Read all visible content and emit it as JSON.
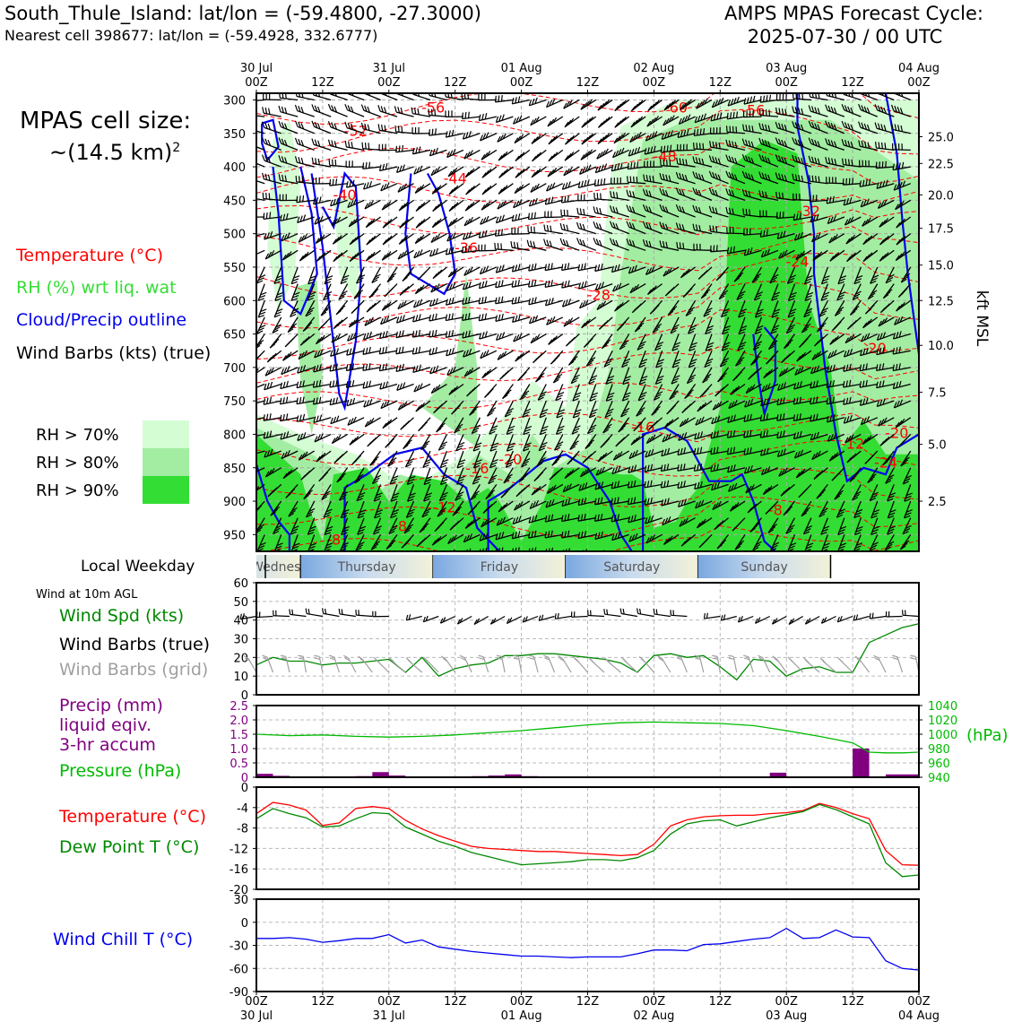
{
  "header": {
    "title": "South_Thule_Island: lat/lon = (-59.4800, -27.3000)",
    "subtitle": "Nearest cell 398677: lat/lon = (-59.4928, 332.6777)",
    "cycle_line1": "AMPS MPAS Forecast Cycle:",
    "cycle_line2": "2025-07-30 / 00 UTC"
  },
  "cell_size": {
    "line1": "MPAS cell size:",
    "line2": "~(14.5 km)",
    "sup": "2"
  },
  "legend": {
    "temperature": "Temperature (°C)",
    "rh": "RH (%) wrt liq. wat",
    "cloud": "Cloud/Precip outline",
    "wind": "Wind Barbs (kts) (true)",
    "rh70": "RH > 70%",
    "rh80": "RH > 80%",
    "rh90": "RH > 90%"
  },
  "colors": {
    "temperature": "#ff0000",
    "rh_text": "#33dd33",
    "cloud": "#0000ee",
    "rh70": "#d4fdd4",
    "rh80": "#a3eda3",
    "rh90": "#33dd33",
    "wind_speed": "#008800",
    "precip": "#800080",
    "pressure": "#00bb00",
    "dewpoint": "#008800",
    "wind_chill": "#0000ee",
    "grid_barb": "#a0a0a0",
    "weekday_blue": "#7aa8e0",
    "weekday_cream": "#f3f2d8"
  },
  "weekday_label": "Local Weekday",
  "wind10_label": "Wind at 10m AGL",
  "panel_labels": {
    "wind_spd": "Wind Spd (kts)",
    "wind_barbs_true": "Wind Barbs (true)",
    "wind_barbs_grid": "Wind Barbs (grid)",
    "precip_1": "Precip (mm)",
    "precip_2": "liquid eqiv.",
    "precip_3": "3-hr accum",
    "pressure": "Pressure (hPa)",
    "temperature": "Temperature (°C)",
    "dewpoint": "Dew Point T (°C)",
    "wind_chill": "Wind Chill T (°C)"
  },
  "chart_data": [
    {
      "type": "heatmap",
      "panel": "upper_air_timeheight",
      "x_top_ticks": [
        {
          "line1": "30 Jul",
          "line2": "00Z"
        },
        {
          "line1": "",
          "line2": "12Z"
        },
        {
          "line1": "31 Jul",
          "line2": "00Z"
        },
        {
          "line1": "",
          "line2": "12Z"
        },
        {
          "line1": "01 Aug",
          "line2": "00Z"
        },
        {
          "line1": "",
          "line2": "12Z"
        },
        {
          "line1": "02 Aug",
          "line2": "00Z"
        },
        {
          "line1": "",
          "line2": "12Z"
        },
        {
          "line1": "03 Aug",
          "line2": "00Z"
        },
        {
          "line1": "",
          "line2": "12Z"
        },
        {
          "line1": "04 Aug",
          "line2": "00Z"
        }
      ],
      "x_range_hours": [
        0,
        120
      ],
      "y_pressure_ticks": [
        300,
        350,
        400,
        450,
        500,
        550,
        600,
        650,
        700,
        750,
        800,
        850,
        900,
        950
      ],
      "y_range_hpa": [
        290,
        975
      ],
      "y_right_label": "kft MSL",
      "y_right_ticks": [
        {
          "kft": 25.0,
          "label": "25.0",
          "p": 355
        },
        {
          "kft": 22.5,
          "label": "22.5",
          "p": 395
        },
        {
          "kft": 20.0,
          "label": "20.0",
          "p": 442
        },
        {
          "kft": 17.5,
          "label": "17.5",
          "p": 492
        },
        {
          "kft": 15.0,
          "label": "15.0",
          "p": 547
        },
        {
          "kft": 12.5,
          "label": "12.5",
          "p": 600
        },
        {
          "kft": 10.0,
          "label": "10.0",
          "p": 667
        },
        {
          "kft": 7.5,
          "label": "7.5",
          "p": 737
        },
        {
          "kft": 5.0,
          "label": "5.0",
          "p": 815
        },
        {
          "kft": 2.5,
          "label": "2.5",
          "p": 900
        }
      ],
      "temperature_labels": [
        {
          "t": 16,
          "p": 312,
          "text": "-56"
        },
        {
          "t": 9,
          "p": 347,
          "text": "-52"
        },
        {
          "t": 37,
          "p": 385,
          "text": "-48"
        },
        {
          "t": 38,
          "p": 312,
          "text": "-60"
        },
        {
          "t": 45,
          "p": 316,
          "text": "-56"
        },
        {
          "t": 18,
          "p": 418,
          "text": "-44"
        },
        {
          "t": 8,
          "p": 443,
          "text": "-40"
        },
        {
          "t": 19,
          "p": 522,
          "text": "-36"
        },
        {
          "t": 31,
          "p": 592,
          "text": "-28"
        },
        {
          "t": 50,
          "p": 467,
          "text": "-32"
        },
        {
          "t": 49,
          "p": 543,
          "text": "-24"
        },
        {
          "t": 56,
          "p": 672,
          "text": "-20"
        },
        {
          "t": 35,
          "p": 790,
          "text": "-16"
        },
        {
          "t": 20,
          "p": 852,
          "text": "-16"
        },
        {
          "t": 23,
          "p": 838,
          "text": "-20"
        },
        {
          "t": 17,
          "p": 910,
          "text": "-12"
        },
        {
          "t": 13,
          "p": 938,
          "text": "-8"
        },
        {
          "t": 7,
          "p": 958,
          "text": "-8"
        },
        {
          "t": 54,
          "p": 815,
          "text": "-12"
        },
        {
          "t": 58,
          "p": 799,
          "text": "-20"
        },
        {
          "t": 47,
          "p": 914,
          "text": "-8"
        },
        {
          "t": 57,
          "p": 843,
          "text": "-24"
        }
      ],
      "series": [
        {
          "name": "RH > 70%"
        },
        {
          "name": "RH > 80%"
        },
        {
          "name": "RH > 90%"
        },
        {
          "name": "Cloud/Precip outline"
        },
        {
          "name": "Temperature (°C)"
        },
        {
          "name": "Wind Barbs (kts) (true)"
        }
      ]
    },
    {
      "type": "table",
      "panel": "local_weekday",
      "days": [
        {
          "label": "Wednesday",
          "start_h": -16,
          "end_h": 8
        },
        {
          "label": "Thursday",
          "start_h": 8,
          "end_h": 32
        },
        {
          "label": "Friday",
          "start_h": 32,
          "end_h": 56
        },
        {
          "label": "Saturday",
          "start_h": 56,
          "end_h": 80
        },
        {
          "label": "Sunday",
          "start_h": 80,
          "end_h": 104
        }
      ],
      "x_range_hours": [
        0,
        60
      ]
    },
    {
      "type": "line",
      "panel": "wind_10m",
      "series_name": "Wind Spd (kts)",
      "x_range_hours": [
        0,
        120
      ],
      "ylim": [
        0,
        60
      ],
      "yticks": [
        0,
        10,
        20,
        30,
        40,
        50,
        60
      ],
      "x": [
        0,
        3,
        6,
        9,
        12,
        15,
        18,
        21,
        24,
        27,
        30,
        33,
        36,
        39,
        42,
        45,
        48,
        51,
        54,
        57,
        60,
        63,
        66,
        69,
        72,
        75,
        78,
        81,
        84,
        87,
        90,
        93,
        96,
        99,
        102,
        105,
        108,
        111,
        114,
        117,
        120
      ],
      "values": [
        16,
        20,
        18,
        18,
        16,
        17,
        17,
        18,
        19,
        12,
        20,
        10,
        14,
        16,
        17,
        21,
        21,
        22,
        22,
        21,
        20,
        19,
        17,
        12,
        21,
        22,
        20,
        21,
        15,
        8,
        19,
        18,
        10,
        14,
        15,
        12,
        12,
        28,
        32,
        36,
        38
      ],
      "barb_rows": [
        {
          "name": "Wind Barbs (true)",
          "y_value": 42
        },
        {
          "name": "Wind Barbs (grid)",
          "y_value": 12
        }
      ]
    },
    {
      "type": "bar",
      "panel": "precip_pressure",
      "x_range_hours": [
        0,
        120
      ],
      "precip": {
        "name": "Precip (mm)",
        "ylim": [
          0,
          2.5
        ],
        "yticks": [
          "0",
          "0.5",
          "1.0",
          "1.5",
          "2.0",
          "2.5"
        ],
        "bars": [
          {
            "x": 1.5,
            "v": 0.12
          },
          {
            "x": 4.5,
            "v": 0.05
          },
          {
            "x": 19.5,
            "v": 0.04
          },
          {
            "x": 22.5,
            "v": 0.18
          },
          {
            "x": 25.5,
            "v": 0.06
          },
          {
            "x": 40.5,
            "v": 0.04
          },
          {
            "x": 43.5,
            "v": 0.06
          },
          {
            "x": 46.5,
            "v": 0.1
          },
          {
            "x": 49.5,
            "v": 0.04
          },
          {
            "x": 94.5,
            "v": 0.16
          },
          {
            "x": 109.5,
            "v": 1.0
          },
          {
            "x": 115.5,
            "v": 0.1
          },
          {
            "x": 118.5,
            "v": 0.1
          }
        ]
      },
      "pressure": {
        "name": "Pressure (hPa)",
        "ylim": [
          940,
          1040
        ],
        "yticks": [
          940,
          960,
          980,
          1000,
          1020,
          1040
        ],
        "x": [
          0,
          6,
          12,
          18,
          24,
          30,
          36,
          42,
          48,
          54,
          60,
          66,
          72,
          78,
          84,
          90,
          96,
          102,
          108,
          111,
          114,
          117,
          120
        ],
        "values": [
          1000,
          998,
          999,
          997,
          996,
          997,
          999,
          1002,
          1005,
          1009,
          1013,
          1016,
          1017,
          1016,
          1015,
          1012,
          1005,
          997,
          988,
          975,
          974,
          974,
          975
        ]
      }
    },
    {
      "type": "line",
      "panel": "temperature_dewpoint",
      "x_range_hours": [
        0,
        120
      ],
      "ylim": [
        -20,
        0
      ],
      "yticks": [
        0,
        -4,
        -8,
        -12,
        -16,
        -20
      ],
      "x": [
        0,
        3,
        6,
        9,
        12,
        15,
        18,
        21,
        24,
        27,
        30,
        33,
        36,
        39,
        42,
        45,
        48,
        51,
        54,
        57,
        60,
        63,
        66,
        69,
        72,
        75,
        78,
        81,
        84,
        87,
        90,
        93,
        96,
        99,
        102,
        105,
        108,
        111,
        114,
        117,
        120
      ],
      "series": [
        {
          "name": "Temperature (°C)",
          "values": [
            -5.2,
            -3.0,
            -3.5,
            -4.5,
            -7.5,
            -7.0,
            -4.2,
            -3.8,
            -4.2,
            -6.5,
            -8.2,
            -9.5,
            -10.6,
            -11.6,
            -12.0,
            -12.2,
            -12.4,
            -12.6,
            -12.6,
            -12.8,
            -13.0,
            -13.2,
            -13.4,
            -13.2,
            -11.2,
            -7.6,
            -6.4,
            -5.8,
            -5.6,
            -5.5,
            -5.5,
            -5.2,
            -5.0,
            -4.6,
            -3.2,
            -4.0,
            -5.2,
            -6.2,
            -12.4,
            -15.2,
            -15.3
          ]
        },
        {
          "name": "Dew Point T (°C)",
          "values": [
            -6.2,
            -4.2,
            -5.2,
            -6.0,
            -7.8,
            -7.6,
            -6.2,
            -5.0,
            -5.2,
            -7.8,
            -9.2,
            -10.6,
            -11.6,
            -12.8,
            -13.6,
            -14.4,
            -15.2,
            -15.0,
            -14.8,
            -14.6,
            -14.2,
            -14.2,
            -14.4,
            -13.8,
            -12.4,
            -9.2,
            -7.2,
            -6.6,
            -6.4,
            -7.6,
            -6.8,
            -6.0,
            -5.4,
            -4.8,
            -3.4,
            -4.4,
            -5.8,
            -7.2,
            -14.8,
            -17.5,
            -17.2
          ]
        }
      ]
    },
    {
      "type": "line",
      "panel": "wind_chill",
      "series_name": "Wind Chill T (°C)",
      "x_range_hours": [
        0,
        120
      ],
      "ylim": [
        -90,
        30
      ],
      "yticks": [
        30,
        0,
        -30,
        -60,
        -90
      ],
      "x": [
        0,
        3,
        6,
        9,
        12,
        15,
        18,
        21,
        24,
        27,
        30,
        33,
        36,
        39,
        42,
        45,
        48,
        51,
        54,
        57,
        60,
        63,
        66,
        69,
        72,
        75,
        78,
        81,
        84,
        87,
        90,
        93,
        96,
        99,
        102,
        105,
        108,
        111,
        114,
        117,
        120
      ],
      "values": [
        -21,
        -21,
        -20,
        -22,
        -26,
        -24,
        -21,
        -21,
        -16,
        -27,
        -23,
        -32,
        -35,
        -38,
        -40,
        -42,
        -44,
        -44,
        -45,
        -46,
        -45,
        -45,
        -45,
        -41,
        -36,
        -36,
        -37,
        -29,
        -28,
        -25,
        -22,
        -20,
        -8,
        -21,
        -20,
        -10,
        -19,
        -20,
        -50,
        -60,
        -62
      ]
    }
  ],
  "bottom_axis_ticks": [
    {
      "line1": "00Z",
      "line2": "30 Jul"
    },
    {
      "line1": "12Z",
      "line2": ""
    },
    {
      "line1": "00Z",
      "line2": "31 Jul"
    },
    {
      "line1": "12Z",
      "line2": ""
    },
    {
      "line1": "00Z",
      "line2": "01 Aug"
    },
    {
      "line1": "12Z",
      "line2": ""
    },
    {
      "line1": "00Z",
      "line2": "02 Aug"
    },
    {
      "line1": "12Z",
      "line2": ""
    },
    {
      "line1": "00Z",
      "line2": "03 Aug"
    },
    {
      "line1": "12Z",
      "line2": ""
    },
    {
      "line1": "00Z",
      "line2": "04 Aug"
    }
  ]
}
